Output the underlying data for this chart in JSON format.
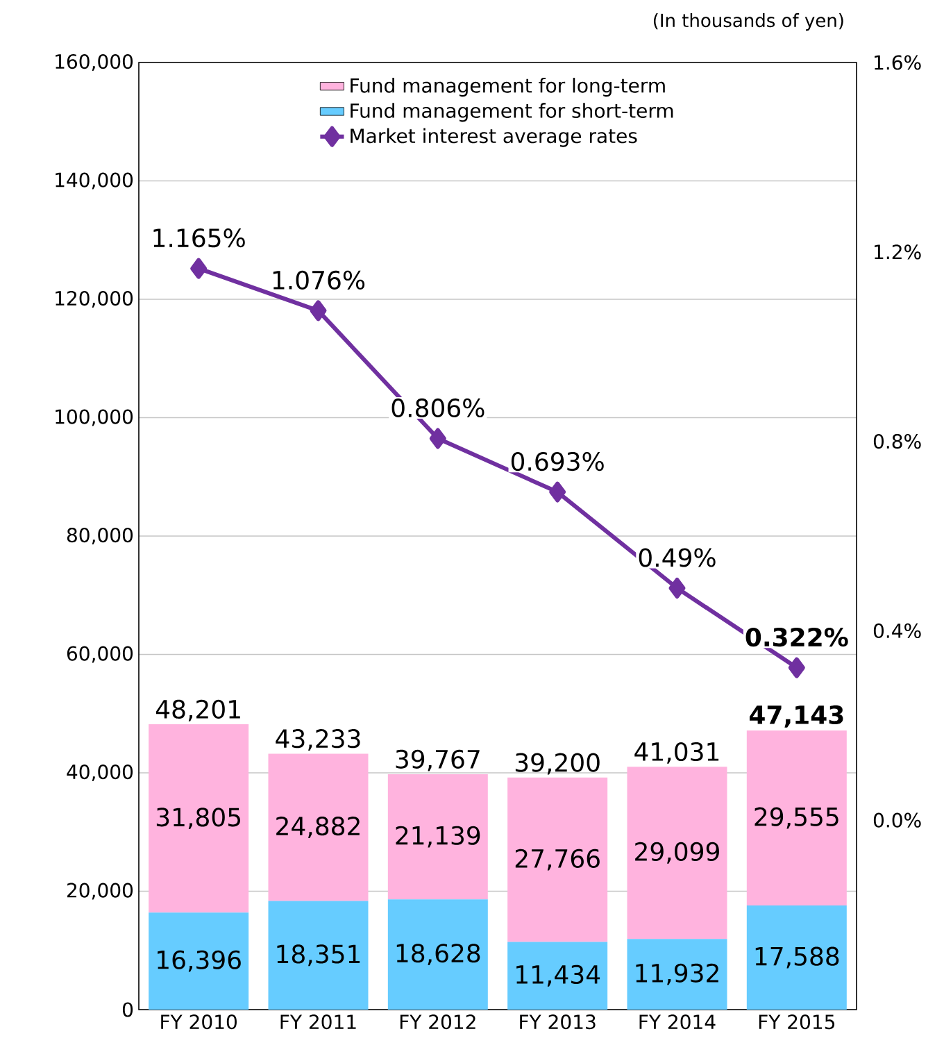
{
  "chart_data": {
    "type": "bar",
    "stacked": true,
    "categories": [
      "FY 2010",
      "FY 2011",
      "FY 2012",
      "FY 2013",
      "FY 2014",
      "FY 2015"
    ],
    "series": [
      {
        "name": "Fund management for short-term",
        "color": "#66ccff",
        "values": [
          16396,
          18351,
          18628,
          11434,
          11932,
          17588
        ],
        "value_labels": [
          "16,396",
          "18,351",
          "18,628",
          "11,434",
          "11,932",
          "17,588"
        ]
      },
      {
        "name": "Fund management for long-term",
        "color": "#ffb3de",
        "values": [
          31805,
          24882,
          21139,
          27766,
          29099,
          29555
        ],
        "value_labels": [
          "31,805",
          "24,882",
          "21,139",
          "27,766",
          "29,099",
          "29,555"
        ]
      },
      {
        "name": "Market interest average rates",
        "type": "line",
        "axis": "y2",
        "color": "#7030a0",
        "marker": "diamond",
        "values": [
          1.165,
          1.076,
          0.806,
          0.693,
          0.49,
          0.322
        ],
        "value_labels": [
          "1.165%",
          "1.076%",
          "0.806%",
          "0.693%",
          "0.49%",
          "**0.322%**"
        ]
      }
    ],
    "totals": [
      "48,201",
      "43,233",
      "39,767",
      "39,200",
      "41,031",
      "**47,143**"
    ],
    "ylim": [
      0,
      160000
    ],
    "yticks": [
      {
        "value": 0,
        "label": "0"
      },
      {
        "value": 20000,
        "label": "20,000"
      },
      {
        "value": 40000,
        "label": "40,000"
      },
      {
        "value": 60000,
        "label": "60,000"
      },
      {
        "value": 80000,
        "label": "80,000"
      },
      {
        "value": 100000,
        "label": "100,000"
      },
      {
        "value": 120000,
        "label": "120,000"
      },
      {
        "value": 140000,
        "label": "140,000"
      },
      {
        "value": 160000,
        "label": "160,000"
      }
    ],
    "y2lim": [
      -0.4,
      1.6
    ],
    "y2ticks": [
      {
        "value": 0,
        "label": "0.0%"
      },
      {
        "value": 0.4,
        "label": "0.4%"
      },
      {
        "value": 0.8,
        "label": "0.8%"
      },
      {
        "value": 1.2,
        "label": "1.2%"
      },
      {
        "value": 1.6,
        "label": "1.6%"
      }
    ],
    "grid": "y",
    "legend": "top",
    "annotations": [
      "(In thousands of yen)"
    ]
  }
}
